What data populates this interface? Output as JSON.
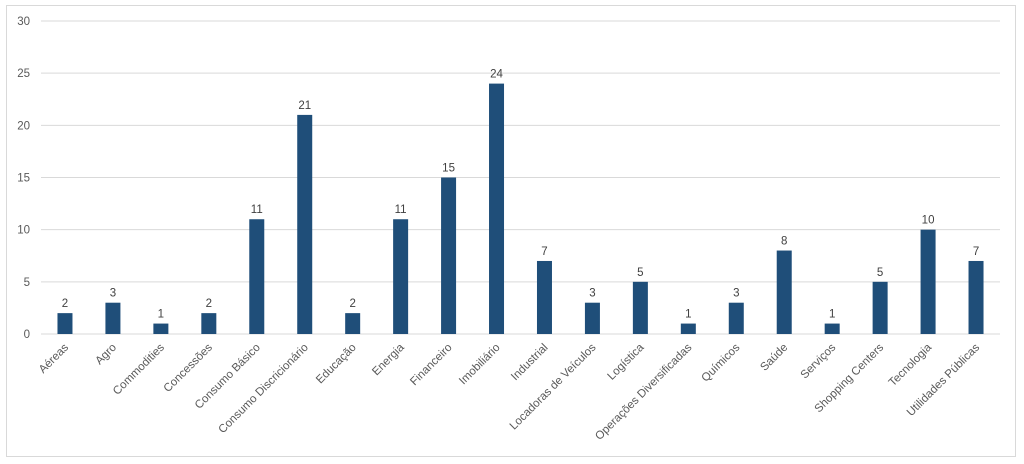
{
  "chart_data": {
    "type": "bar",
    "categories": [
      "Aéreas",
      "Agro",
      "Commodities",
      "Concessões",
      "Consumo Básico",
      "Consumo Discricionário",
      "Educação",
      "Energia",
      "Financeiro",
      "Imobiliário",
      "Industrial",
      "Locadoras de Veículos",
      "Logística",
      "Operações Diversificadas",
      "Químicos",
      "Saúde",
      "Serviços",
      "Shopping Centers",
      "Tecnologia",
      "Utilidades Públicas"
    ],
    "values": [
      2,
      3,
      1,
      2,
      11,
      21,
      2,
      11,
      15,
      24,
      7,
      3,
      5,
      1,
      3,
      8,
      1,
      5,
      10,
      7
    ],
    "ylim": [
      0,
      30
    ],
    "yticks": [
      0,
      5,
      10,
      15,
      20,
      25,
      30
    ],
    "title": "",
    "xlabel": "",
    "ylabel": "",
    "grid": true,
    "legend": "none",
    "colors": {
      "bar": "#1f4e79",
      "grid": "#d9d9d9"
    }
  }
}
